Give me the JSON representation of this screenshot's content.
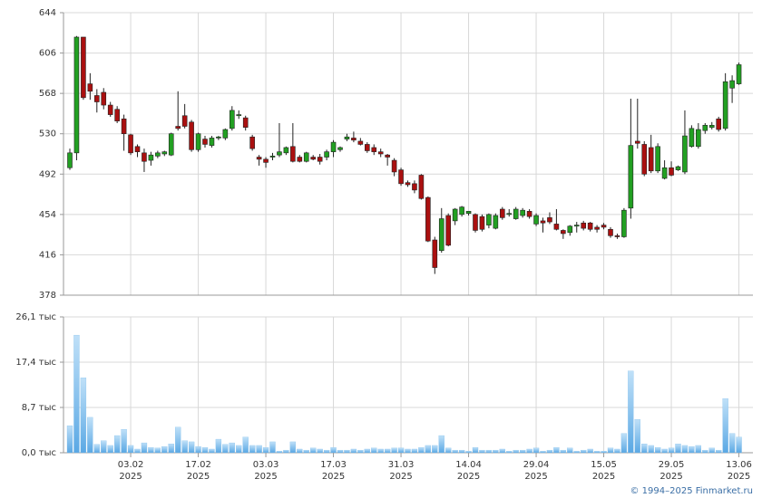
{
  "chart_data": [
    {
      "type": "candlestick",
      "categories": [
        null,
        null,
        null,
        null,
        null,
        null,
        null,
        null,
        null,
        {
          "date": "03.02",
          "year": "2025"
        },
        null,
        null,
        null,
        null,
        null,
        null,
        null,
        null,
        null,
        {
          "date": "17.02",
          "year": "2025"
        },
        null,
        null,
        null,
        null,
        null,
        null,
        null,
        null,
        null,
        {
          "date": "03.03",
          "year": "2025"
        },
        null,
        null,
        null,
        null,
        null,
        null,
        null,
        null,
        null,
        {
          "date": "17.03",
          "year": "2025"
        },
        null,
        null,
        null,
        null,
        null,
        null,
        null,
        null,
        null,
        {
          "date": "31.03",
          "year": "2025"
        },
        null,
        null,
        null,
        null,
        null,
        null,
        null,
        null,
        null,
        {
          "date": "14.04",
          "year": "2025"
        },
        null,
        null,
        null,
        null,
        null,
        null,
        null,
        null,
        null,
        {
          "date": "29.04",
          "year": "2025"
        },
        null,
        null,
        null,
        null,
        null,
        null,
        null,
        null,
        null,
        {
          "date": "15.05",
          "year": "2025"
        },
        null,
        null,
        null,
        null,
        null,
        null,
        null,
        null,
        null,
        {
          "date": "29.05",
          "year": "2025"
        },
        null,
        null,
        null,
        null,
        null,
        null,
        null,
        null,
        null,
        {
          "date": "13.06",
          "year": "2025"
        }
      ],
      "open": [
        498,
        512,
        621,
        577,
        566,
        569,
        557,
        553,
        544,
        529,
        518,
        512,
        505,
        509,
        511,
        510,
        537,
        547,
        541,
        515,
        525,
        519,
        526,
        526,
        535,
        547,
        545,
        527,
        508,
        506,
        508,
        510,
        512,
        518,
        508,
        504,
        508,
        508,
        508,
        513,
        515,
        525,
        526,
        523,
        520,
        517,
        513,
        510,
        505,
        496,
        484,
        483,
        491,
        470,
        430,
        420,
        453,
        448,
        454,
        455,
        454,
        452,
        444,
        441,
        459,
        454,
        450,
        453,
        457,
        445,
        448,
        451,
        445,
        439,
        437,
        443,
        446,
        446,
        442,
        444,
        440,
        434,
        433,
        460,
        523,
        520,
        517,
        495,
        488,
        498,
        496,
        494,
        518,
        518,
        533,
        536,
        544,
        535,
        573,
        577
      ],
      "high": [
        516,
        622,
        621,
        587,
        572,
        573,
        560,
        556,
        548,
        530,
        520,
        516,
        513,
        514,
        514,
        531,
        570,
        558,
        543,
        531,
        528,
        528,
        528,
        535,
        556,
        552,
        547,
        529,
        510,
        508,
        512,
        540,
        518,
        540,
        510,
        513,
        510,
        511,
        515,
        524,
        518,
        530,
        532,
        526,
        522,
        520,
        516,
        511,
        507,
        498,
        486,
        486,
        492,
        471,
        433,
        460,
        455,
        460,
        462,
        457,
        455,
        454,
        455,
        455,
        461,
        459,
        461,
        460,
        459,
        455,
        451,
        456,
        459,
        440,
        444,
        447,
        448,
        447,
        444,
        446,
        442,
        436,
        460,
        563,
        563,
        523,
        529,
        521,
        505,
        504,
        500,
        552,
        538,
        540,
        540,
        541,
        546,
        587,
        585,
        597
      ],
      "low": [
        496,
        505,
        562,
        562,
        550,
        553,
        546,
        540,
        514,
        510,
        508,
        494,
        500,
        507,
        509,
        509,
        533,
        535,
        513,
        513,
        517,
        517,
        524,
        524,
        533,
        544,
        533,
        514,
        500,
        498,
        505,
        508,
        510,
        503,
        503,
        503,
        505,
        501,
        505,
        508,
        513,
        523,
        522,
        519,
        512,
        510,
        508,
        500,
        490,
        481,
        480,
        474,
        468,
        428,
        398,
        418,
        424,
        444,
        452,
        453,
        437,
        438,
        441,
        440,
        449,
        452,
        449,
        451,
        450,
        443,
        437,
        445,
        439,
        431,
        434,
        437,
        439,
        438,
        437,
        440,
        432,
        431,
        432,
        450,
        516,
        490,
        493,
        493,
        487,
        490,
        495,
        492,
        517,
        516,
        530,
        534,
        532,
        533,
        559,
        576
      ],
      "close": [
        512,
        621,
        564,
        570,
        560,
        557,
        548,
        542,
        530,
        512,
        513,
        504,
        510,
        512,
        513,
        530,
        535,
        537,
        515,
        530,
        520,
        526,
        527,
        534,
        552,
        548,
        536,
        516,
        506,
        503,
        509,
        513,
        517,
        504,
        504,
        512,
        506,
        504,
        513,
        522,
        517,
        527,
        524,
        520,
        514,
        513,
        511,
        508,
        494,
        483,
        482,
        477,
        469,
        429,
        404,
        450,
        425,
        459,
        461,
        457,
        439,
        440,
        454,
        453,
        451,
        455,
        459,
        458,
        452,
        453,
        446,
        447,
        440,
        436,
        443,
        444,
        441,
        440,
        440,
        442,
        434,
        433,
        458,
        519,
        521,
        492,
        495,
        518,
        498,
        491,
        499,
        528,
        535,
        534,
        538,
        538,
        534,
        579,
        580,
        595
      ],
      "up_color": "#22a022",
      "down_color": "#aa1010",
      "ylim": [
        378,
        644
      ],
      "yticks": [
        378,
        416,
        454,
        492,
        530,
        568,
        606,
        644
      ],
      "grid": true
    },
    {
      "type": "bar",
      "values": [
        5.2,
        22.6,
        14.4,
        6.8,
        1.6,
        2.3,
        1.4,
        3.3,
        4.5,
        1.4,
        0.7,
        1.9,
        1.0,
        0.9,
        1.2,
        1.7,
        4.9,
        2.3,
        2.1,
        1.2,
        1.0,
        0.7,
        2.6,
        1.6,
        1.9,
        1.4,
        3.0,
        1.4,
        1.4,
        1.0,
        2.1,
        0.3,
        0.5,
        2.1,
        0.7,
        0.5,
        0.9,
        0.7,
        0.5,
        1.0,
        0.5,
        0.5,
        0.7,
        0.5,
        0.7,
        0.9,
        0.7,
        0.7,
        0.9,
        0.9,
        0.7,
        0.7,
        1.0,
        1.4,
        1.4,
        3.3,
        0.9,
        0.5,
        0.5,
        0.3,
        1.0,
        0.5,
        0.5,
        0.5,
        0.7,
        0.3,
        0.5,
        0.5,
        0.7,
        0.9,
        0.3,
        0.5,
        1.0,
        0.5,
        0.9,
        0.3,
        0.5,
        0.7,
        0.3,
        0.3,
        0.9,
        0.7,
        3.7,
        15.7,
        6.4,
        1.7,
        1.4,
        1.0,
        0.7,
        0.9,
        1.7,
        1.4,
        1.2,
        1.4,
        0.5,
        0.9,
        0.5,
        10.4,
        3.7,
        3.0
      ],
      "color": "#7fbdec",
      "ylim": [
        0,
        26.1
      ],
      "yticks": [
        {
          "value": 0,
          "label": "0,0 тыс"
        },
        {
          "value": 8.7,
          "label": "8,7 тыс"
        },
        {
          "value": 17.4,
          "label": "17,4 тыс"
        },
        {
          "value": 26.1,
          "label": "26,1 тыс"
        }
      ],
      "grid": true
    }
  ],
  "footer": "© 1994–2025 Finmarket.ru"
}
